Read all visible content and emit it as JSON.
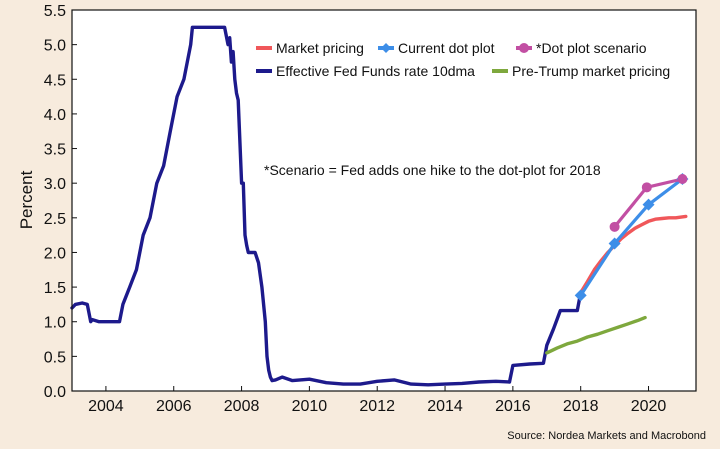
{
  "chart_data": {
    "type": "line",
    "ylabel": "Percent",
    "ylim": [
      0,
      5.5
    ],
    "xlim": [
      2003.0,
      2021.4
    ],
    "yticks": [
      "0.0",
      "0.5",
      "1.0",
      "1.5",
      "2.0",
      "2.5",
      "3.0",
      "3.5",
      "4.0",
      "4.5",
      "5.0",
      "5.5"
    ],
    "xticks": [
      "2004",
      "2006",
      "2008",
      "2010",
      "2012",
      "2014",
      "2016",
      "2018",
      "2020"
    ],
    "annotation": "*Scenario = Fed adds one hike to the dot-plot for 2018",
    "source": "Source: Nordea Markets and Macrobond",
    "legend_position": "top-right",
    "colors": {
      "market": "#f0575a",
      "dot": "#3d8ee8",
      "scenario": "#c24fa3",
      "effr": "#1d1a8c",
      "pretrump": "#7ea83d"
    },
    "series": [
      {
        "key": "market",
        "name": "Market pricing",
        "x": [
          2018.0,
          2018.2,
          2018.4,
          2018.6,
          2018.8,
          2019.0,
          2019.2,
          2019.4,
          2019.6,
          2019.8,
          2020.0,
          2020.2,
          2020.4,
          2020.6,
          2020.8,
          2021.1
        ],
        "y": [
          1.42,
          1.58,
          1.75,
          1.88,
          2.0,
          2.1,
          2.2,
          2.28,
          2.35,
          2.4,
          2.45,
          2.48,
          2.49,
          2.5,
          2.5,
          2.52
        ]
      },
      {
        "key": "dot",
        "name": "Current dot plot",
        "x": [
          2018.0,
          2019.0,
          2020.0,
          2021.0
        ],
        "y": [
          1.38,
          2.13,
          2.69,
          3.06
        ]
      },
      {
        "key": "scenario",
        "name": "*Dot plot scenario",
        "x": [
          2019.0,
          2019.95,
          2021.0
        ],
        "y": [
          2.37,
          2.94,
          3.06
        ]
      },
      {
        "key": "effr",
        "name": "Effective Fed Funds rate 10dma",
        "x": [
          2003.0,
          2003.1,
          2003.3,
          2003.45,
          2003.55,
          2003.6,
          2003.8,
          2004.0,
          2004.4,
          2004.5,
          2004.7,
          2004.9,
          2005.1,
          2005.3,
          2005.5,
          2005.7,
          2005.9,
          2006.1,
          2006.3,
          2006.5,
          2006.55,
          2007.0,
          2007.5,
          2007.6,
          2007.65,
          2007.7,
          2007.75,
          2007.8,
          2007.85,
          2007.9,
          2008.0,
          2008.05,
          2008.1,
          2008.15,
          2008.2,
          2008.3,
          2008.4,
          2008.5,
          2008.6,
          2008.7,
          2008.75,
          2008.8,
          2008.85,
          2008.9,
          2009.0,
          2009.2,
          2009.5,
          2010.0,
          2010.5,
          2011.0,
          2011.5,
          2012.0,
          2012.5,
          2013.0,
          2013.5,
          2014.0,
          2014.5,
          2015.0,
          2015.5,
          2015.9,
          2016.0,
          2016.5,
          2016.9,
          2017.0,
          2017.2,
          2017.4,
          2017.5,
          2017.9,
          2018.0
        ],
        "y": [
          1.2,
          1.25,
          1.27,
          1.25,
          1.0,
          1.03,
          1.0,
          1.0,
          1.0,
          1.25,
          1.5,
          1.75,
          2.25,
          2.5,
          3.0,
          3.25,
          3.75,
          4.25,
          4.5,
          5.0,
          5.25,
          5.25,
          5.25,
          5.0,
          5.1,
          4.75,
          4.9,
          4.5,
          4.3,
          4.2,
          3.0,
          3.0,
          2.25,
          2.1,
          2.0,
          2.0,
          2.0,
          1.85,
          1.5,
          1.0,
          0.5,
          0.3,
          0.2,
          0.15,
          0.16,
          0.2,
          0.15,
          0.17,
          0.12,
          0.1,
          0.1,
          0.14,
          0.16,
          0.1,
          0.09,
          0.1,
          0.11,
          0.13,
          0.14,
          0.13,
          0.37,
          0.39,
          0.4,
          0.66,
          0.9,
          1.16,
          1.16,
          1.16,
          1.42
        ]
      },
      {
        "key": "pretrump",
        "name": "Pre-Trump market pricing",
        "x": [
          2017.0,
          2017.3,
          2017.6,
          2017.9,
          2018.2,
          2018.5,
          2018.8,
          2019.1,
          2019.4,
          2019.7,
          2019.9
        ],
        "y": [
          0.55,
          0.62,
          0.68,
          0.72,
          0.78,
          0.82,
          0.87,
          0.92,
          0.97,
          1.02,
          1.06
        ]
      }
    ]
  }
}
